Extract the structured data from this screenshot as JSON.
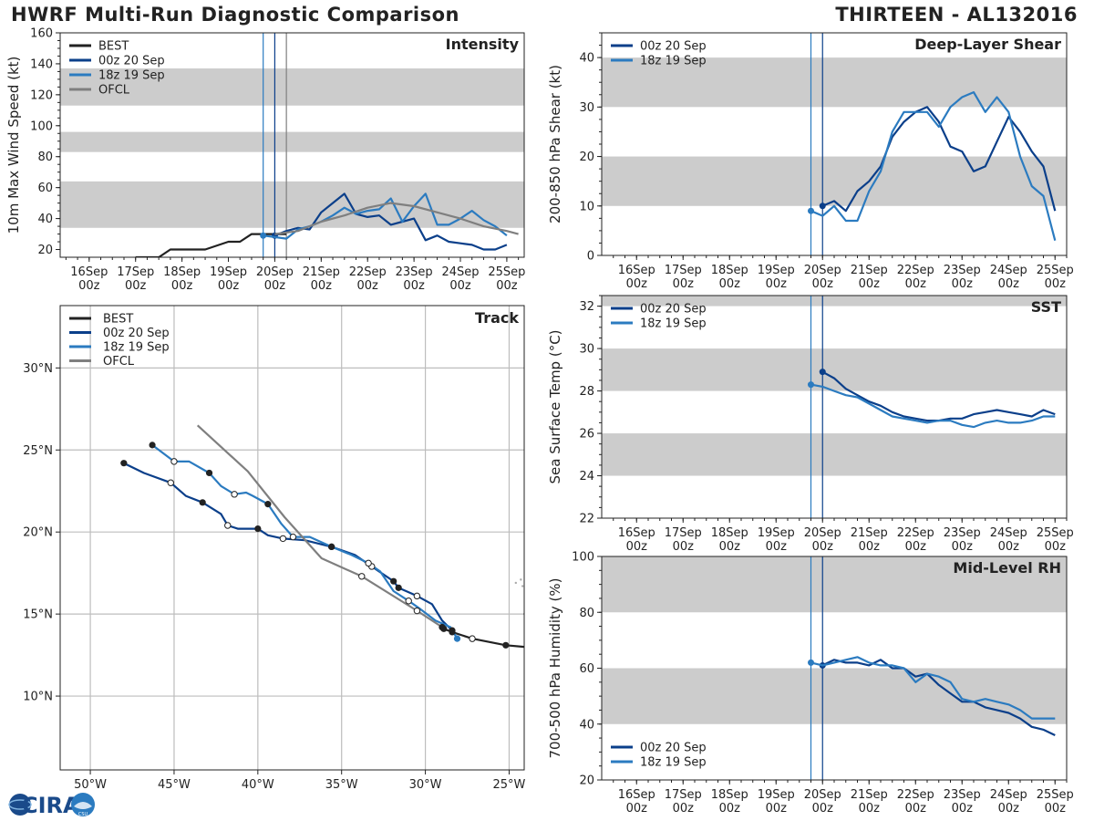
{
  "header": {
    "title": "HWRF Multi-Run Diagnostic Comparison",
    "storm": "THIRTEEN - AL132016"
  },
  "logo": {
    "text": "CIRA",
    "subtext": "CSU"
  },
  "colors": {
    "best": "#222222",
    "run00z": "#0b3f8a",
    "run18z": "#2b7bc0",
    "ofcl": "#7f7f7f",
    "band": "#cccccc",
    "track_grid": "#bdbdbd",
    "marker_fill_open": "#ffffff"
  },
  "chart_data": [
    {
      "id": "intensity",
      "type": "line",
      "title": "Intensity",
      "ylabel": "10m Max Wind Speed (kt)",
      "ylim": [
        15,
        160
      ],
      "yticks": [
        20,
        40,
        60,
        80,
        100,
        120,
        140,
        160
      ],
      "xlim": [
        -15,
        225
      ],
      "x_ticks": [
        0,
        24,
        48,
        72,
        96,
        120,
        144,
        168,
        192,
        216
      ],
      "x_ticklabels": [
        "16Sep\n00z",
        "17Sep\n00z",
        "18Sep\n00z",
        "19Sep\n00z",
        "20Sep\n00z",
        "21Sep\n00z",
        "22Sep\n00z",
        "23Sep\n00z",
        "24Sep\n00z",
        "25Sep\n00z"
      ],
      "bands": [
        [
          34,
          64
        ],
        [
          83,
          96
        ],
        [
          113,
          137
        ]
      ],
      "vlines": [
        {
          "x": 90,
          "series": "18z 19 Sep"
        },
        {
          "x": 96,
          "series": "00z 20 Sep"
        },
        {
          "x": 102,
          "series": "OFCL"
        }
      ],
      "legend": [
        "BEST",
        "00z 20 Sep",
        "18z 19 Sep",
        "OFCL"
      ],
      "legend_position": "top-left",
      "series": [
        {
          "name": "BEST",
          "x": [
            24,
            36,
            42,
            48,
            60,
            72,
            78,
            84,
            96,
            102
          ],
          "y": [
            15,
            15,
            20,
            20,
            20,
            25,
            25,
            30,
            30,
            30
          ]
        },
        {
          "name": "00z 20 Sep",
          "x": [
            96,
            102,
            108,
            114,
            120,
            126,
            132,
            138,
            144,
            150,
            156,
            162,
            168,
            174,
            180,
            186,
            192,
            198,
            204,
            210,
            216
          ],
          "y": [
            29,
            32,
            34,
            33,
            44,
            50,
            56,
            43,
            41,
            42,
            36,
            38,
            40,
            26,
            29,
            25,
            24,
            23,
            20,
            20,
            23
          ],
          "marker_at_start": true
        },
        {
          "name": "18z 19 Sep",
          "x": [
            90,
            96,
            102,
            108,
            114,
            120,
            126,
            132,
            138,
            144,
            150,
            156,
            162,
            168,
            174,
            180,
            186,
            192,
            198,
            204,
            210,
            216
          ],
          "y": [
            29,
            28,
            27,
            33,
            35,
            38,
            42,
            47,
            43,
            45,
            46,
            53,
            38,
            48,
            56,
            36,
            36,
            40,
            45,
            39,
            35,
            29
          ],
          "marker_at_start": true
        },
        {
          "name": "OFCL",
          "x": [
            96,
            108,
            120,
            132,
            144,
            156,
            168,
            180,
            192,
            204,
            216,
            222
          ],
          "y": [
            30,
            32,
            38,
            42,
            47,
            50,
            48,
            44,
            40,
            35,
            32,
            30
          ]
        }
      ]
    },
    {
      "id": "shear",
      "type": "line",
      "title": "Deep-Layer Shear",
      "ylabel": "200-850 hPa Shear (kt)",
      "ylim": [
        0,
        45
      ],
      "yticks": [
        0,
        10,
        20,
        30,
        40
      ],
      "xlim": [
        -18,
        222
      ],
      "x_ticks": [
        0,
        24,
        48,
        72,
        96,
        120,
        144,
        168,
        192,
        216
      ],
      "x_ticklabels": [
        "16Sep\n00z",
        "17Sep\n00z",
        "18Sep\n00z",
        "19Sep\n00z",
        "20Sep\n00z",
        "21Sep\n00z",
        "22Sep\n00z",
        "23Sep\n00z",
        "24Sep\n00z",
        "25Sep\n00z"
      ],
      "bands": [
        [
          10,
          20
        ],
        [
          30,
          40
        ]
      ],
      "vlines": [
        {
          "x": 90,
          "series": "18z 19 Sep"
        },
        {
          "x": 96,
          "series": "00z 20 Sep"
        }
      ],
      "legend": [
        "00z 20 Sep",
        "18z 19 Sep"
      ],
      "legend_position": "top-left",
      "series": [
        {
          "name": "00z 20 Sep",
          "x": [
            96,
            102,
            108,
            114,
            120,
            126,
            132,
            138,
            144,
            150,
            156,
            162,
            168,
            174,
            180,
            186,
            192,
            198,
            204,
            210,
            216
          ],
          "y": [
            10,
            11,
            9,
            13,
            15,
            18,
            24,
            27,
            29,
            30,
            27,
            22,
            21,
            17,
            18,
            23,
            28,
            25,
            21,
            18,
            9
          ],
          "marker_at_start": true
        },
        {
          "name": "18z 19 Sep",
          "x": [
            90,
            96,
            102,
            108,
            114,
            120,
            126,
            132,
            138,
            144,
            150,
            156,
            162,
            168,
            174,
            180,
            186,
            192,
            198,
            204,
            210,
            216
          ],
          "y": [
            9,
            8,
            10,
            7,
            7,
            13,
            17,
            25,
            29,
            29,
            29,
            26,
            30,
            32,
            33,
            29,
            32,
            29,
            20,
            14,
            12,
            3
          ],
          "marker_at_start": true
        }
      ]
    },
    {
      "id": "sst",
      "type": "line",
      "title": "SST",
      "ylabel": "Sea Surface Temp (°C)",
      "ylim": [
        22,
        32.5
      ],
      "yticks": [
        22,
        24,
        26,
        28,
        30,
        32
      ],
      "xlim": [
        -18,
        222
      ],
      "x_ticks": [
        0,
        24,
        48,
        72,
        96,
        120,
        144,
        168,
        192,
        216
      ],
      "x_ticklabels": [
        "16Sep\n00z",
        "17Sep\n00z",
        "18Sep\n00z",
        "19Sep\n00z",
        "20Sep\n00z",
        "21Sep\n00z",
        "22Sep\n00z",
        "23Sep\n00z",
        "24Sep\n00z",
        "25Sep\n00z"
      ],
      "bands": [
        [
          24,
          26
        ],
        [
          28,
          30
        ],
        [
          32,
          34
        ]
      ],
      "vlines": [
        {
          "x": 90,
          "series": "18z 19 Sep"
        },
        {
          "x": 96,
          "series": "00z 20 Sep"
        }
      ],
      "legend": [
        "00z 20 Sep",
        "18z 19 Sep"
      ],
      "legend_position": "top-left",
      "series": [
        {
          "name": "00z 20 Sep",
          "x": [
            96,
            102,
            108,
            114,
            120,
            126,
            132,
            138,
            144,
            150,
            156,
            162,
            168,
            174,
            180,
            186,
            192,
            198,
            204,
            210,
            216
          ],
          "y": [
            28.9,
            28.6,
            28.1,
            27.8,
            27.5,
            27.3,
            27.0,
            26.8,
            26.7,
            26.6,
            26.6,
            26.7,
            26.7,
            26.9,
            27.0,
            27.1,
            27.0,
            26.9,
            26.8,
            27.1,
            26.9
          ],
          "marker_at_start": true
        },
        {
          "name": "18z 19 Sep",
          "x": [
            90,
            96,
            102,
            108,
            114,
            120,
            126,
            132,
            138,
            144,
            150,
            156,
            162,
            168,
            174,
            180,
            186,
            192,
            198,
            204,
            210,
            216
          ],
          "y": [
            28.3,
            28.2,
            28.0,
            27.8,
            27.7,
            27.4,
            27.1,
            26.8,
            26.7,
            26.6,
            26.5,
            26.6,
            26.6,
            26.4,
            26.3,
            26.5,
            26.6,
            26.5,
            26.5,
            26.6,
            26.8,
            26.8
          ],
          "marker_at_start": true
        }
      ]
    },
    {
      "id": "rh",
      "type": "line",
      "title": "Mid-Level RH",
      "ylabel": "700-500 hPa Humidity (%)",
      "ylim": [
        20,
        100
      ],
      "yticks": [
        20,
        40,
        60,
        80,
        100
      ],
      "xlim": [
        -18,
        222
      ],
      "x_ticks": [
        0,
        24,
        48,
        72,
        96,
        120,
        144,
        168,
        192,
        216
      ],
      "x_ticklabels": [
        "16Sep\n00z",
        "17Sep\n00z",
        "18Sep\n00z",
        "19Sep\n00z",
        "20Sep\n00z",
        "21Sep\n00z",
        "22Sep\n00z",
        "23Sep\n00z",
        "24Sep\n00z",
        "25Sep\n00z"
      ],
      "bands": [
        [
          40,
          60
        ],
        [
          80,
          100
        ]
      ],
      "vlines": [
        {
          "x": 90,
          "series": "18z 19 Sep"
        },
        {
          "x": 96,
          "series": "00z 20 Sep"
        }
      ],
      "legend": [
        "00z 20 Sep",
        "18z 19 Sep"
      ],
      "legend_position": "bottom-left",
      "series": [
        {
          "name": "00z 20 Sep",
          "x": [
            96,
            102,
            108,
            114,
            120,
            126,
            132,
            138,
            144,
            150,
            156,
            162,
            168,
            174,
            180,
            186,
            192,
            198,
            204,
            210,
            216
          ],
          "y": [
            61,
            63,
            62,
            62,
            61,
            63,
            60,
            60,
            57,
            58,
            54,
            51,
            48,
            48,
            46,
            45,
            44,
            42,
            39,
            38,
            36
          ],
          "marker_at_start": true
        },
        {
          "name": "18z 19 Sep",
          "x": [
            90,
            96,
            102,
            108,
            114,
            120,
            126,
            132,
            138,
            144,
            150,
            156,
            162,
            168,
            174,
            180,
            186,
            192,
            198,
            204,
            210,
            216
          ],
          "y": [
            62,
            61,
            62,
            63,
            64,
            62,
            61,
            61,
            60,
            55,
            58,
            57,
            55,
            49,
            48,
            49,
            48,
            47,
            45,
            42,
            42,
            42
          ],
          "marker_at_start": true
        }
      ]
    },
    {
      "id": "track",
      "type": "scatter",
      "title": "Track",
      "xlim": [
        -51.8,
        -24.1
      ],
      "ylim": [
        5.5,
        33.8
      ],
      "lon_ticks": [
        -50,
        -45,
        -40,
        -35,
        -30,
        -25
      ],
      "lon_labels": [
        "50°W",
        "45°W",
        "40°W",
        "35°W",
        "30°W",
        "25°W"
      ],
      "lat_ticks": [
        10,
        15,
        20,
        25,
        30
      ],
      "lat_labels": [
        "10°N",
        "15°N",
        "20°N",
        "25°N",
        "30°N"
      ],
      "legend": [
        "BEST",
        "00z 20 Sep",
        "18z 19 Sep",
        "OFCL"
      ],
      "legend_position": "top-left",
      "series": [
        {
          "name": "BEST",
          "lon": [
            -24.1,
            -25.2,
            -27.2,
            -28.4,
            -28.9
          ],
          "lat": [
            13.0,
            13.1,
            13.5,
            13.9,
            14.1
          ],
          "markers_filled": [
            -25.2,
            -28.4,
            -28.9
          ],
          "markers_open": [
            -27.2
          ]
        },
        {
          "name": "00z 20 Sep",
          "lon": [
            -28.4,
            -29.0,
            -29.6,
            -30.5,
            -31.6,
            -31.9,
            -33.2,
            -34.2,
            -35.6,
            -37.2,
            -38.5,
            -39.4,
            -40.0,
            -41.2,
            -41.8,
            -42.2,
            -43.3,
            -44.3,
            -45.2,
            -46.8,
            -48.0
          ],
          "lat": [
            14.0,
            14.6,
            15.6,
            16.1,
            16.6,
            17.0,
            17.9,
            18.6,
            19.1,
            19.5,
            19.6,
            19.8,
            20.2,
            20.2,
            20.4,
            21.1,
            21.8,
            22.2,
            23.0,
            23.6,
            24.2
          ],
          "filled_idx": [
            0,
            4,
            5,
            8,
            12,
            16,
            20
          ],
          "open_idx": [
            3,
            6,
            10,
            14,
            18
          ]
        },
        {
          "name": "18z 19 Sep",
          "lon": [
            -28.1,
            -28.5,
            -29.4,
            -30.3,
            -31.0,
            -31.9,
            -32.7,
            -33.4,
            -34.4,
            -35.6,
            -36.9,
            -37.9,
            -38.6,
            -39.4,
            -40.3,
            -40.7,
            -41.4,
            -42.2,
            -42.9,
            -44.1,
            -45.0,
            -46.3
          ],
          "lat": [
            13.5,
            14.2,
            14.6,
            15.3,
            15.8,
            16.4,
            17.6,
            18.1,
            18.6,
            19.1,
            19.7,
            19.7,
            20.5,
            21.7,
            22.2,
            22.4,
            22.3,
            22.8,
            23.6,
            24.3,
            24.3,
            25.3
          ],
          "filled_idx": [
            0,
            9,
            13,
            18,
            21
          ],
          "open_idx": [
            4,
            7,
            11,
            16,
            20
          ]
        },
        {
          "name": "OFCL",
          "lon": [
            -29.0,
            -30.5,
            -33.8,
            -36.2,
            -38.4,
            -40.6,
            -43.6
          ],
          "lat": [
            14.2,
            15.2,
            17.3,
            18.4,
            20.9,
            23.7,
            26.5
          ],
          "filled_idx": [
            0
          ],
          "open_idx": [
            1,
            2
          ]
        }
      ],
      "land_points": [
        {
          "lon": -24.3,
          "lat": 17.1
        },
        {
          "lon": -24.6,
          "lat": 16.9
        },
        {
          "lon": -24.2,
          "lat": 16.7
        },
        {
          "lon": -24.1,
          "lat": 15.0
        }
      ]
    }
  ]
}
